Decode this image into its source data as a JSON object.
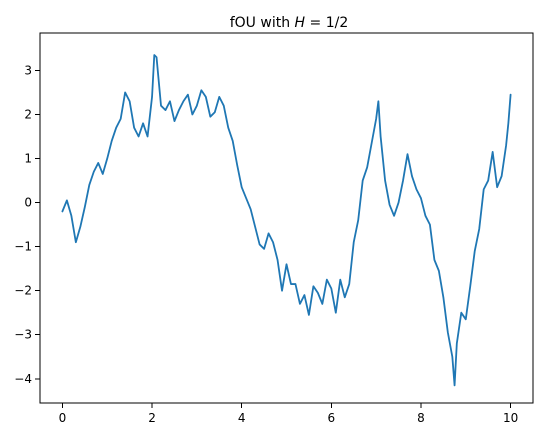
{
  "chart_data": {
    "type": "line",
    "title": "fOU with H = 1/2",
    "title_parts": {
      "prefix": "fOU with ",
      "var": "H",
      "suffix": " = 1/2"
    },
    "xlabel": "",
    "ylabel": "",
    "xlim": [
      -0.5,
      10.5
    ],
    "ylim": [
      -4.55,
      3.85
    ],
    "x_ticks": [
      0,
      2,
      4,
      6,
      8,
      10
    ],
    "y_ticks": [
      -4,
      -3,
      -2,
      -1,
      0,
      1,
      2,
      3
    ],
    "grid": false,
    "legend": "none",
    "colors": {
      "line": "#1f77b4",
      "axes": "#000000",
      "background": "#ffffff"
    },
    "series": [
      {
        "x": [
          0,
          0.1,
          0.2,
          0.3,
          0.4,
          0.5,
          0.6,
          0.7,
          0.8,
          0.9,
          1.0,
          1.1,
          1.2,
          1.3,
          1.4,
          1.5,
          1.6,
          1.7,
          1.8,
          1.9,
          2.0,
          2.05,
          2.1,
          2.2,
          2.3,
          2.4,
          2.5,
          2.6,
          2.7,
          2.8,
          2.9,
          3.0,
          3.1,
          3.2,
          3.3,
          3.4,
          3.5,
          3.6,
          3.7,
          3.8,
          3.9,
          4.0,
          4.1,
          4.2,
          4.3,
          4.4,
          4.5,
          4.6,
          4.7,
          4.8,
          4.9,
          5.0,
          5.1,
          5.2,
          5.3,
          5.4,
          5.5,
          5.6,
          5.7,
          5.8,
          5.9,
          6.0,
          6.1,
          6.2,
          6.3,
          6.4,
          6.5,
          6.6,
          6.7,
          6.8,
          6.9,
          7.0,
          7.05,
          7.1,
          7.2,
          7.3,
          7.4,
          7.5,
          7.6,
          7.7,
          7.8,
          7.9,
          8.0,
          8.1,
          8.2,
          8.3,
          8.4,
          8.5,
          8.6,
          8.7,
          8.75,
          8.8,
          8.9,
          9.0,
          9.1,
          9.2,
          9.3,
          9.4,
          9.5,
          9.6,
          9.7,
          9.8,
          9.9,
          9.95,
          10.0
        ],
        "y": [
          -0.2,
          0.05,
          -0.3,
          -0.9,
          -0.55,
          -0.1,
          0.4,
          0.7,
          0.9,
          0.65,
          1.0,
          1.4,
          1.7,
          1.9,
          2.5,
          2.3,
          1.7,
          1.5,
          1.8,
          1.5,
          2.4,
          3.35,
          3.3,
          2.2,
          2.1,
          2.3,
          1.85,
          2.1,
          2.3,
          2.45,
          2.0,
          2.2,
          2.55,
          2.4,
          1.95,
          2.05,
          2.4,
          2.2,
          1.7,
          1.4,
          0.85,
          0.35,
          0.1,
          -0.15,
          -0.55,
          -0.95,
          -1.05,
          -0.7,
          -0.9,
          -1.3,
          -2.0,
          -1.4,
          -1.85,
          -1.85,
          -2.3,
          -2.1,
          -2.55,
          -1.9,
          -2.05,
          -2.3,
          -1.75,
          -1.95,
          -2.5,
          -1.75,
          -2.15,
          -1.85,
          -0.9,
          -0.4,
          0.5,
          0.8,
          1.35,
          1.9,
          2.3,
          1.5,
          0.5,
          -0.05,
          -0.3,
          0.0,
          0.5,
          1.1,
          0.6,
          0.3,
          0.1,
          -0.3,
          -0.5,
          -1.3,
          -1.55,
          -2.15,
          -2.95,
          -3.5,
          -4.15,
          -3.2,
          -2.5,
          -2.65,
          -1.9,
          -1.1,
          -0.6,
          0.3,
          0.5,
          1.15,
          0.35,
          0.6,
          1.3,
          1.8,
          2.45
        ]
      }
    ]
  }
}
